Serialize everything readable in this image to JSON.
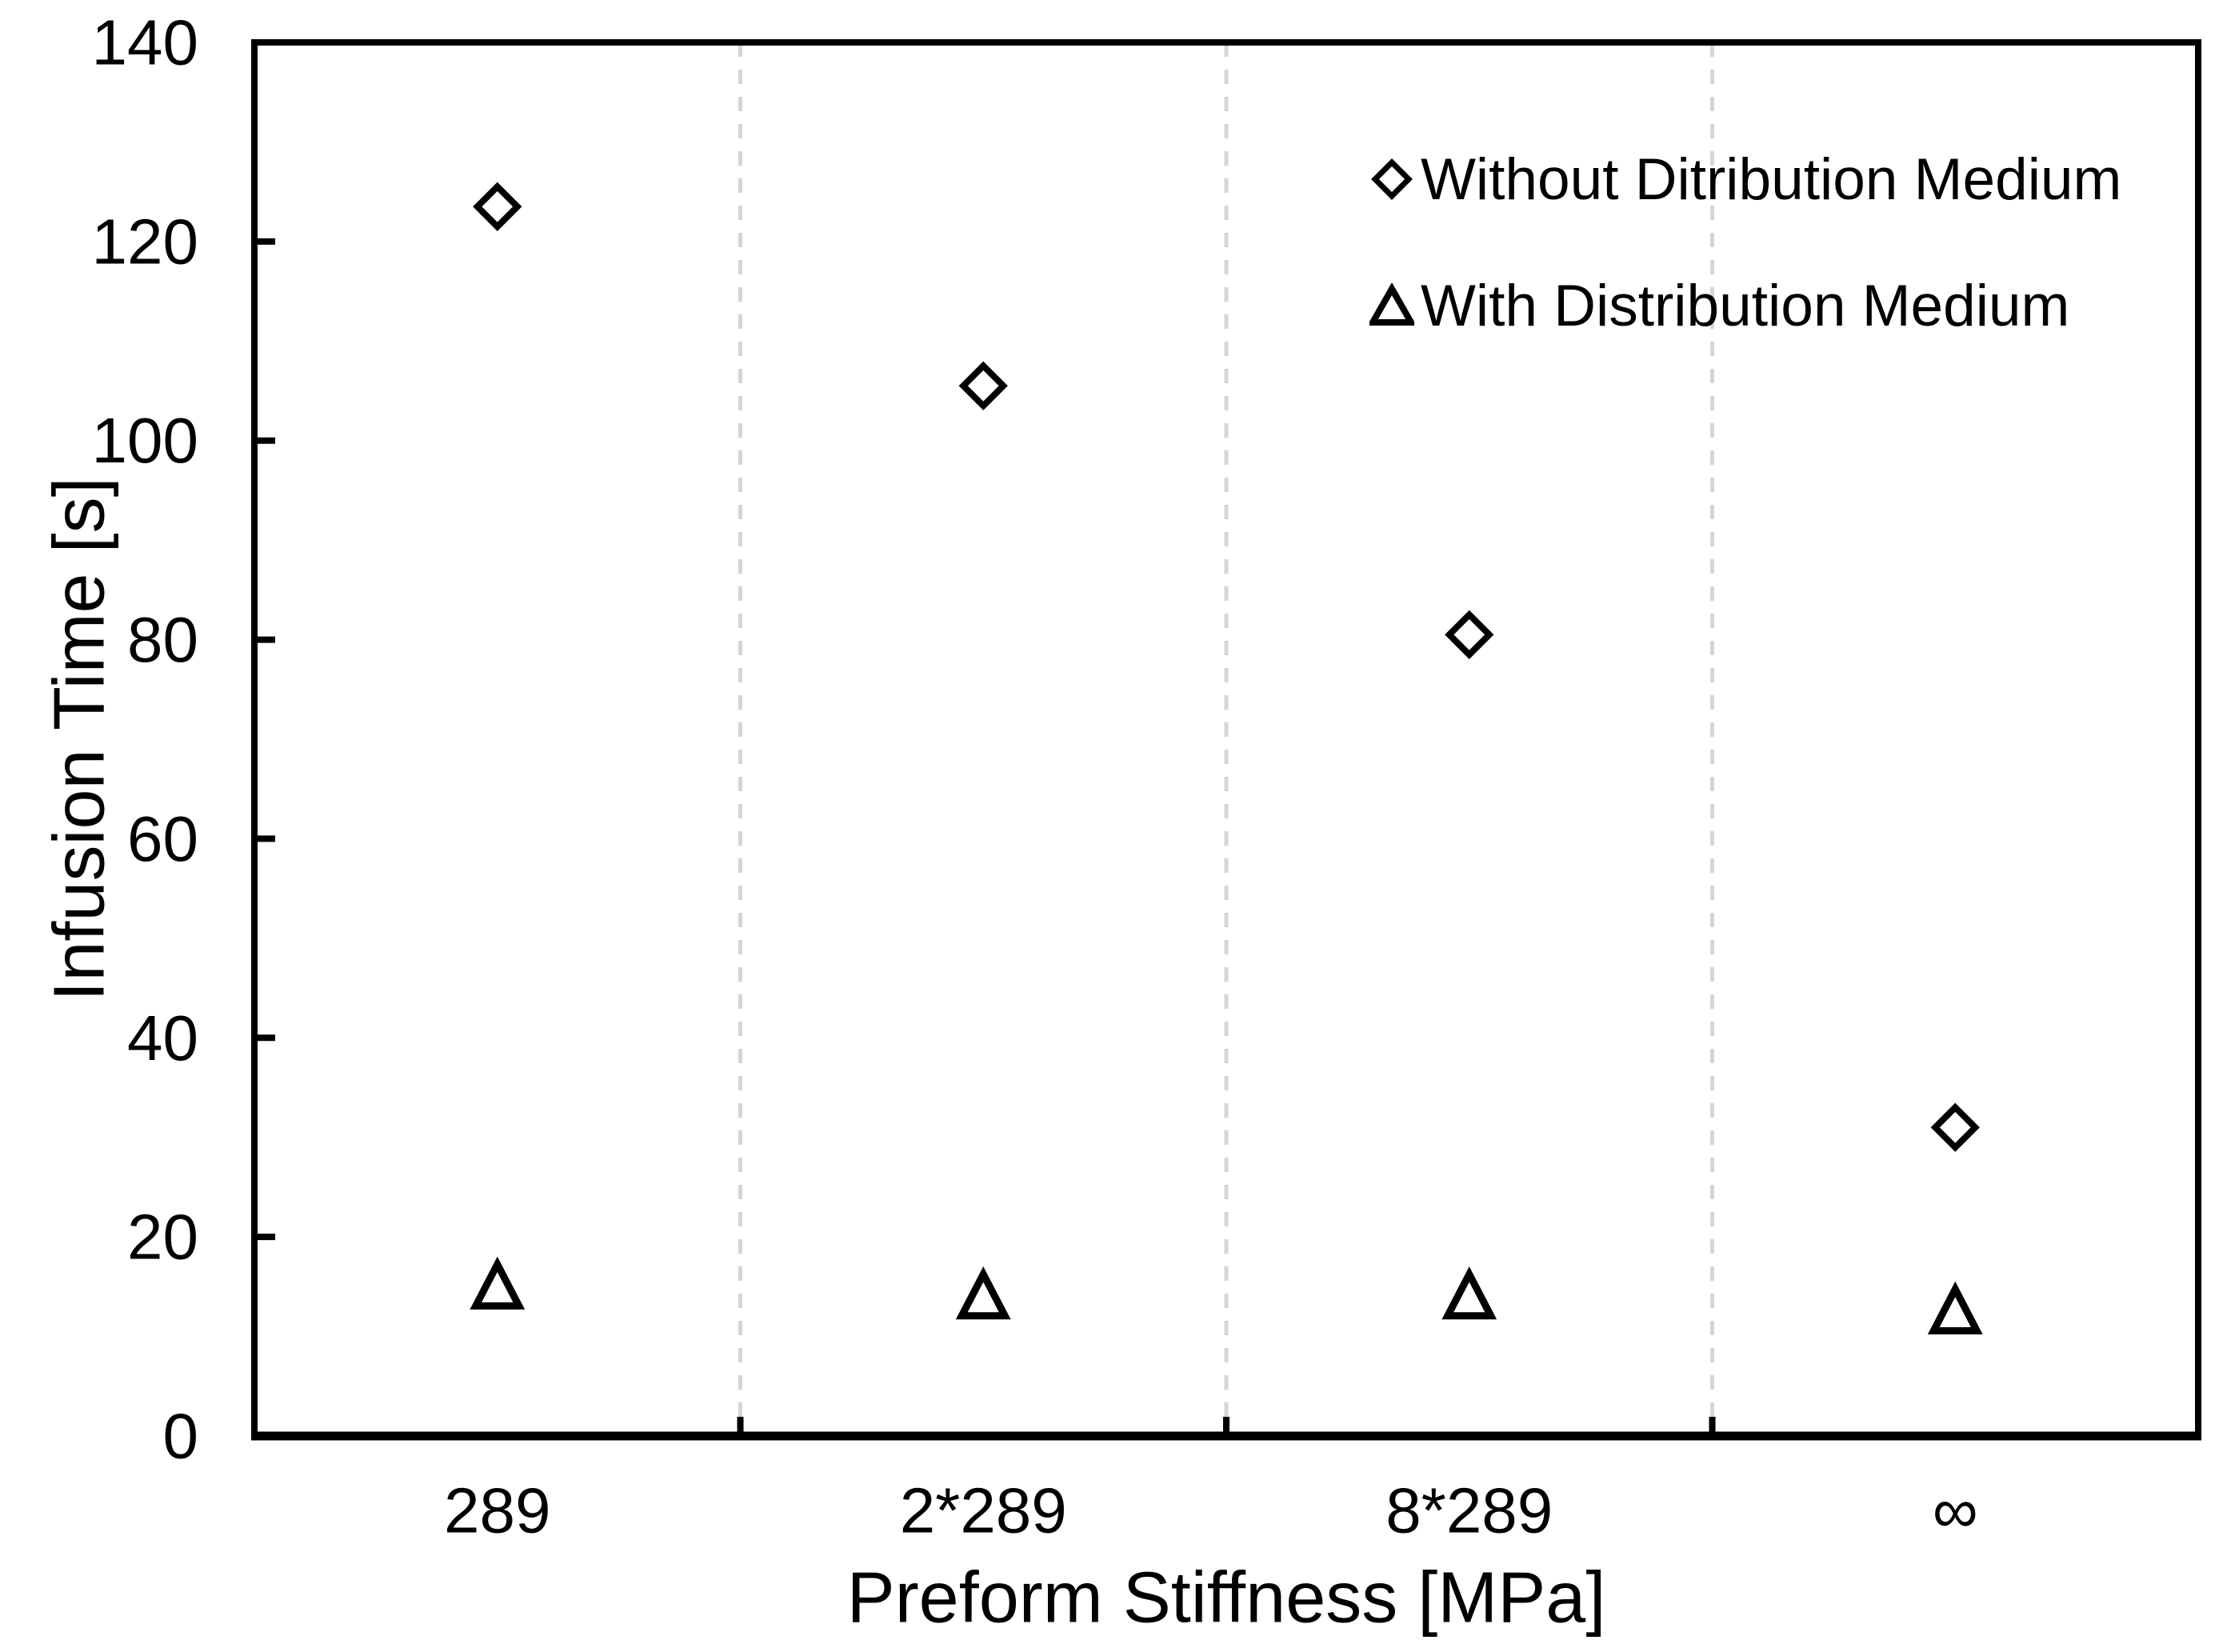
{
  "chart_data": {
    "type": "scatter",
    "title": "",
    "xlabel": "Preform Stiffness [MPa]",
    "ylabel": "Infusion Time [s]",
    "categories": [
      "289",
      "2*289",
      "8*289",
      "∞"
    ],
    "ylim": [
      0,
      140
    ],
    "yticks": [
      0,
      20,
      40,
      60,
      80,
      100,
      120,
      140
    ],
    "grid": "vertical-dashed-category-boundaries",
    "legend_position": "top-right-inside",
    "series": [
      {
        "name": "Without Ditribution Medium",
        "marker": "diamond",
        "values": [
          123.5,
          105.5,
          80.5,
          31
        ]
      },
      {
        "name": "With Distribution Medium",
        "marker": "triangle",
        "values": [
          15,
          14,
          14,
          12.5
        ]
      }
    ]
  },
  "colors": {
    "marker_stroke": "#000000",
    "marker_fill": "#ffffff",
    "axis": "#000000",
    "gridline": "#d5d5d5",
    "text": "#000000",
    "background": "#ffffff"
  }
}
